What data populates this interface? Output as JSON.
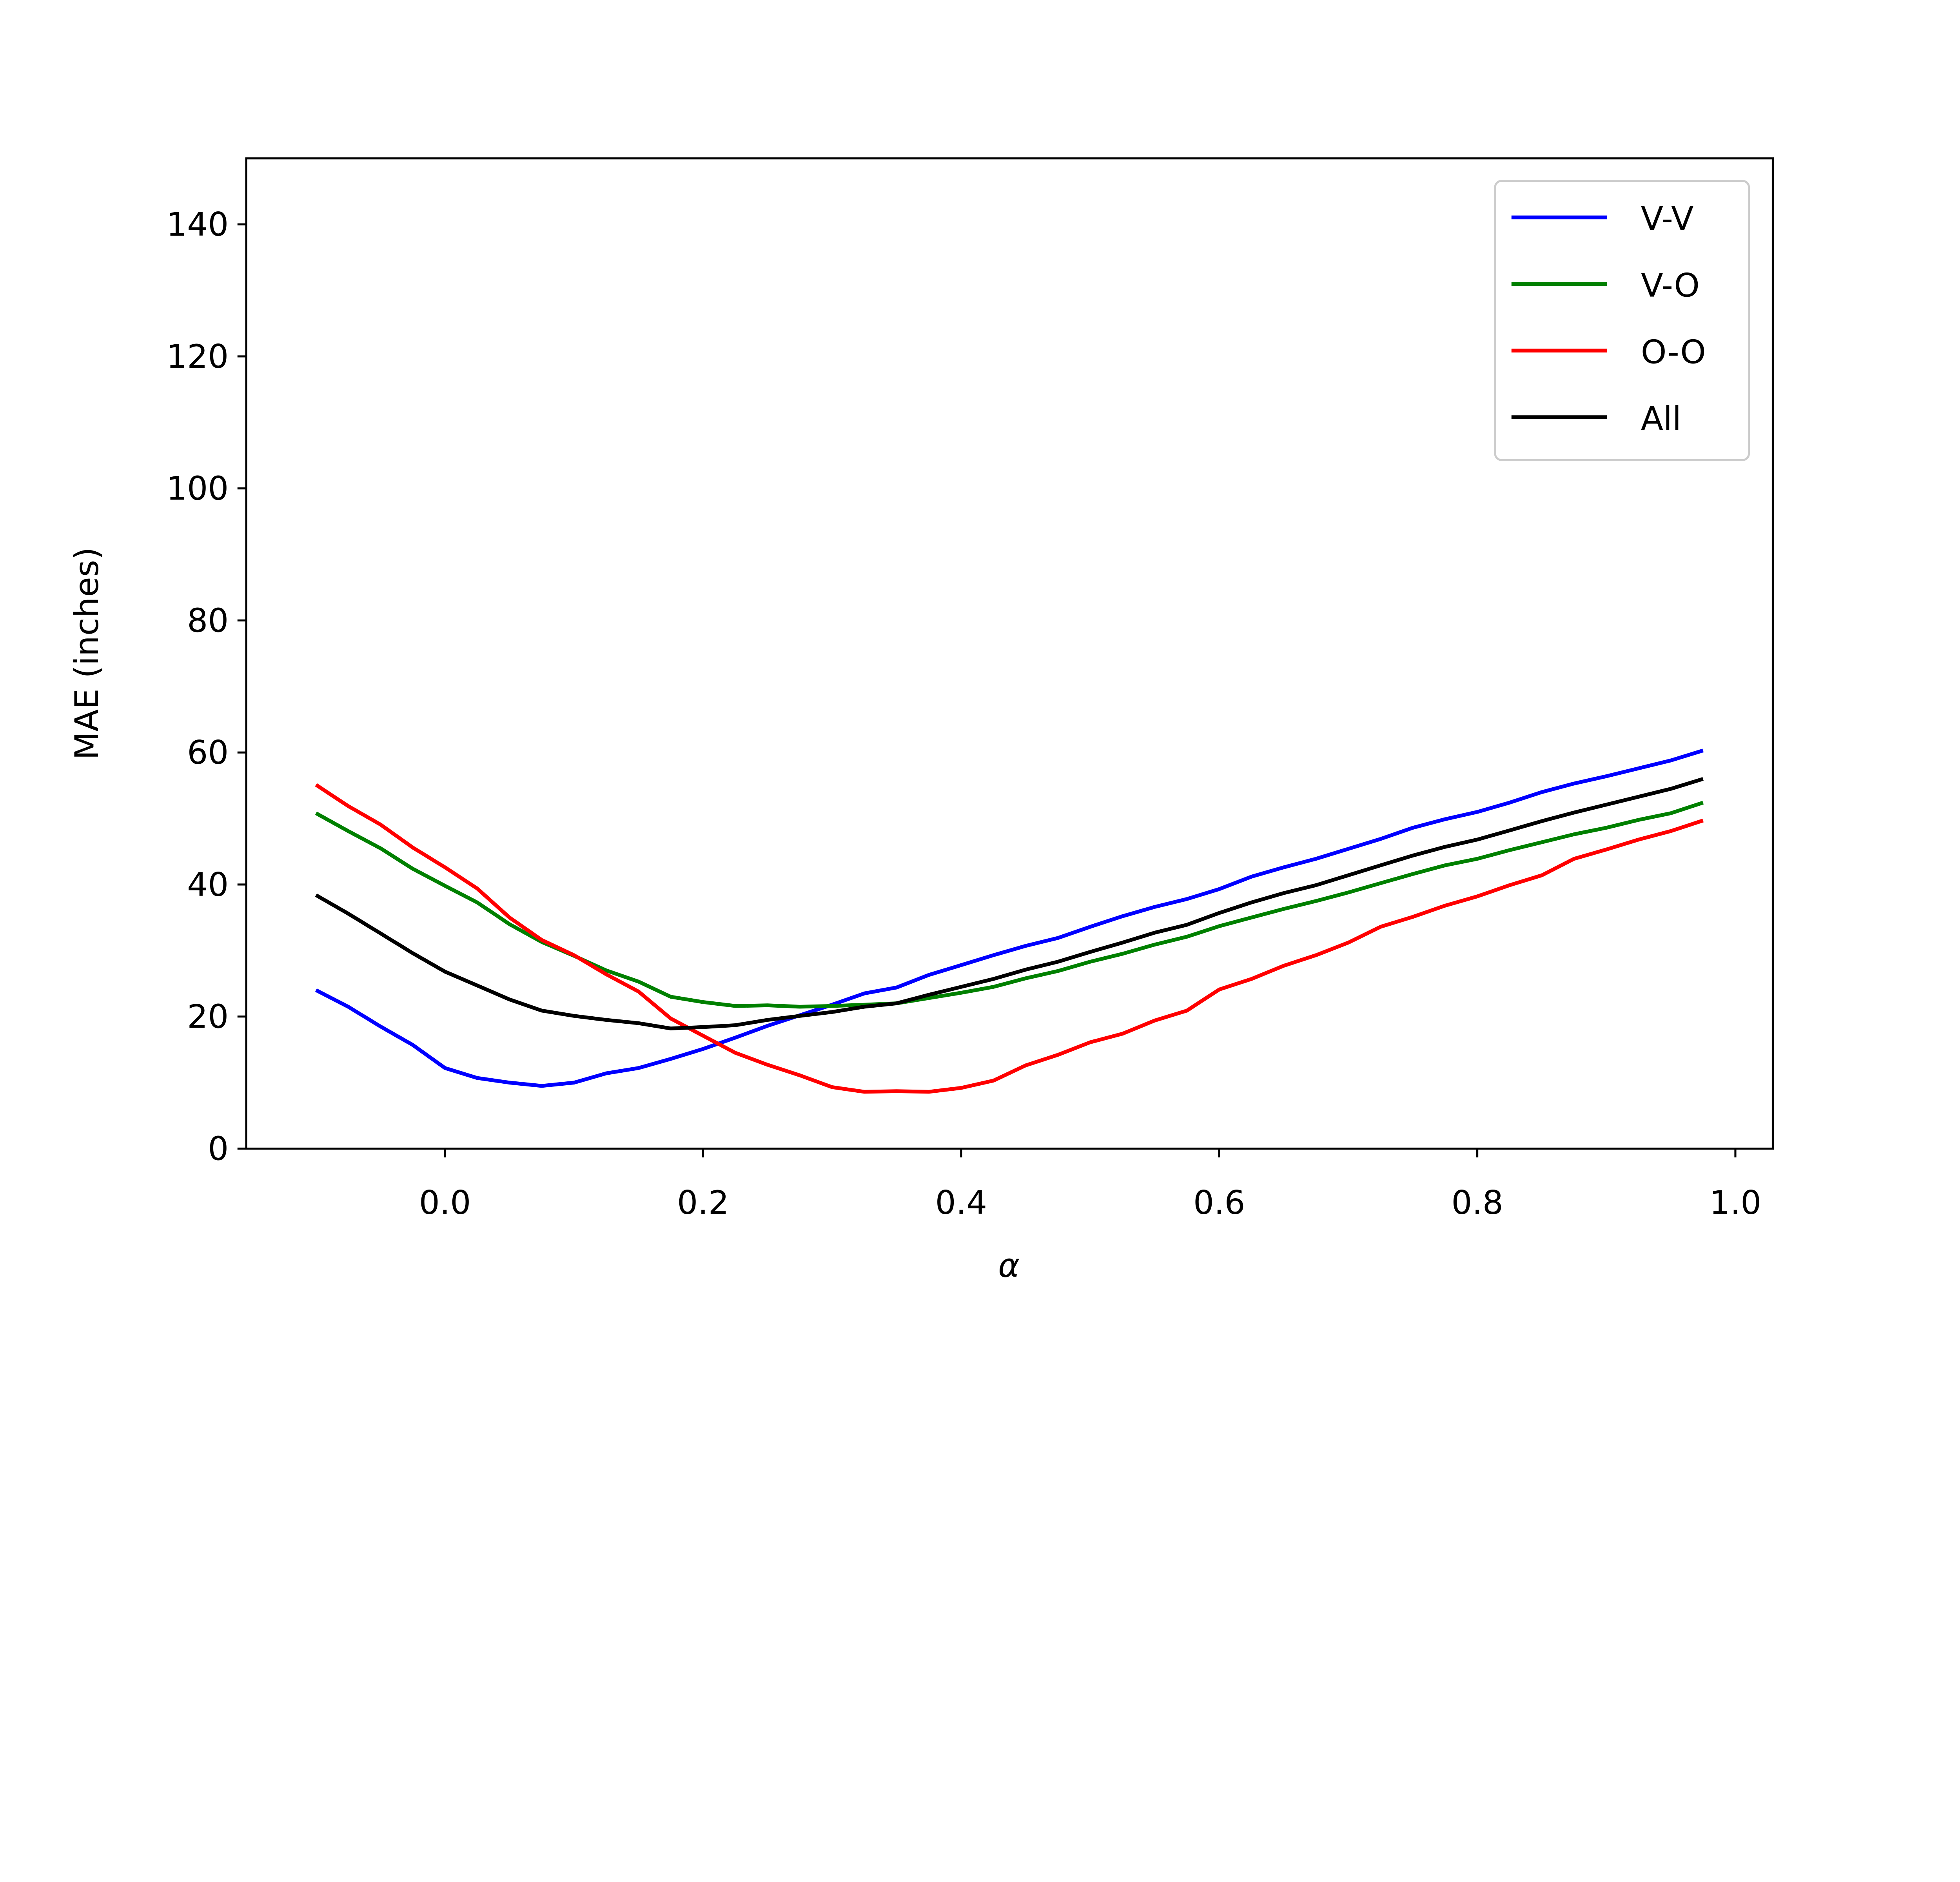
{
  "chart_data": {
    "type": "line",
    "title": "",
    "xlabel": "α",
    "ylabel": "MAE (inches)",
    "xlim": [
      -0.154,
      1.029
    ],
    "ylim": [
      0,
      150
    ],
    "xticks": [
      0.0,
      0.2,
      0.4,
      0.6,
      0.8,
      1.0
    ],
    "xtick_labels": [
      "0.0",
      "0.2",
      "0.4",
      "0.6",
      "0.8",
      "1.0"
    ],
    "yticks": [
      0,
      20,
      40,
      60,
      80,
      100,
      120,
      140
    ],
    "ytick_labels": [
      "0",
      "20",
      "40",
      "60",
      "80",
      "100",
      "120",
      "140"
    ],
    "grid": false,
    "legend_placement": "top-right",
    "x": [
      -0.1,
      -0.075,
      -0.05,
      -0.025,
      0,
      0.025,
      0.05,
      0.075,
      0.1,
      0.125,
      0.15,
      0.175,
      0.2,
      0.225,
      0.25,
      0.275,
      0.3,
      0.325,
      0.35,
      0.375,
      0.4,
      0.425,
      0.45,
      0.475,
      0.5,
      0.525,
      0.55,
      0.575,
      0.6,
      0.625,
      0.65,
      0.675,
      0.7,
      0.725,
      0.75,
      0.775,
      0.8,
      0.825,
      0.85,
      0.875,
      0.9,
      0.925,
      0.95,
      0.975
    ],
    "series": [
      {
        "name": "V-V",
        "color": "#0000ff",
        "values": [
          24,
          21.5,
          18.5,
          15.7,
          12.2,
          10.7,
          10,
          9.5,
          10,
          11.4,
          12.2,
          13.6,
          15.1,
          16.8,
          18.6,
          20.2,
          21.8,
          23.5,
          24.4,
          26.3,
          27.8,
          29.3,
          30.7,
          31.9,
          33.6,
          35.2,
          36.6,
          37.8,
          39.3,
          41.2,
          42.6,
          43.9,
          45.4,
          46.9,
          48.6,
          49.9,
          51,
          52.4,
          54,
          55.3,
          56.4,
          57.6,
          58.8,
          60.3
        ]
      },
      {
        "name": "V-O",
        "color": "#008000",
        "values": [
          50.8,
          48.1,
          45.5,
          42.4,
          39.8,
          37.3,
          34,
          31.3,
          29.2,
          27,
          25.3,
          23,
          22.2,
          21.6,
          21.7,
          21.5,
          21.6,
          21.8,
          22,
          22.8,
          23.6,
          24.5,
          25.8,
          26.9,
          28.3,
          29.5,
          30.9,
          32.1,
          33.7,
          35,
          36.3,
          37.5,
          38.8,
          40.2,
          41.6,
          42.9,
          43.9,
          45.2,
          46.4,
          47.6,
          48.6,
          49.8,
          50.8,
          52.4
        ]
      },
      {
        "name": "O-O",
        "color": "#ff0000",
        "values": [
          55.1,
          51.9,
          49.1,
          45.6,
          42.6,
          39.4,
          35,
          31.6,
          29.3,
          26.4,
          23.8,
          19.7,
          17.1,
          14.5,
          12.7,
          11.1,
          9.3,
          8.6,
          8.7,
          8.6,
          9.2,
          10.3,
          12.6,
          14.2,
          16.1,
          17.4,
          19.4,
          20.9,
          24.1,
          25.7,
          27.7,
          29.3,
          31.2,
          33.6,
          35.1,
          36.8,
          38.2,
          39.9,
          41.4,
          43.9,
          45.3,
          46.8,
          48.1,
          49.7
        ]
      },
      {
        "name": "All",
        "color": "#000000",
        "values": [
          38.4,
          35.6,
          32.6,
          29.6,
          26.8,
          24.7,
          22.6,
          20.9,
          20.1,
          19.5,
          19,
          18.2,
          18.4,
          18.7,
          19.5,
          20.1,
          20.7,
          21.5,
          22,
          23.3,
          24.5,
          25.7,
          27.1,
          28.3,
          29.8,
          31.2,
          32.7,
          33.9,
          35.7,
          37.3,
          38.7,
          39.9,
          41.4,
          42.9,
          44.4,
          45.7,
          46.8,
          48.2,
          49.6,
          50.9,
          52.1,
          53.3,
          54.5,
          56
        ]
      }
    ]
  }
}
